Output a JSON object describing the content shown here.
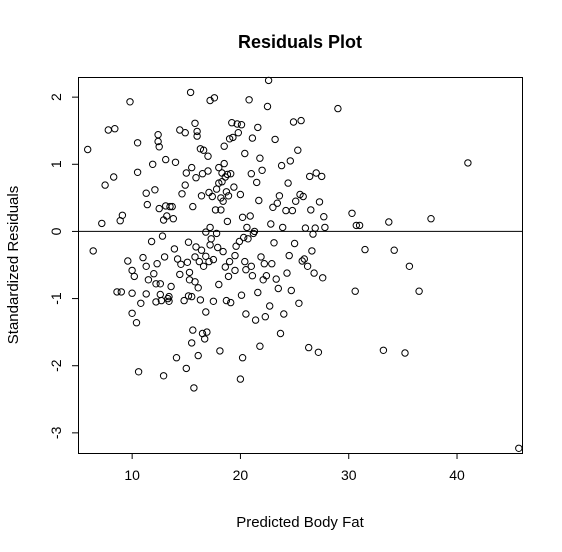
{
  "chart_data": {
    "type": "scatter",
    "title": "Residuals Plot",
    "xlabel": "Predicted Body Fat",
    "ylabel": "Standardized Residuals",
    "xlim": [
      5,
      46
    ],
    "ylim": [
      -3.3,
      2.3
    ],
    "x_ticks": [
      10,
      20,
      30,
      40
    ],
    "y_ticks": [
      -3,
      -2,
      -1,
      0,
      1,
      2
    ],
    "x_tick_labels": [
      "10",
      "20",
      "30",
      "40"
    ],
    "y_tick_labels": [
      "-3",
      "-2",
      "-1",
      "0",
      "1",
      "2"
    ],
    "reference_line": {
      "orientation": "horizontal",
      "y": 0
    },
    "grid": false,
    "legend": false,
    "points": [
      [
        5.9,
        1.22
      ],
      [
        6.4,
        -0.29
      ],
      [
        7.2,
        0.12
      ],
      [
        7.5,
        0.69
      ],
      [
        7.8,
        1.51
      ],
      [
        8.3,
        0.81
      ],
      [
        8.4,
        1.53
      ],
      [
        8.6,
        -0.9
      ],
      [
        8.9,
        0.16
      ],
      [
        9.0,
        -0.9
      ],
      [
        9.1,
        0.24
      ],
      [
        9.6,
        -0.44
      ],
      [
        9.8,
        1.93
      ],
      [
        10.0,
        -0.58
      ],
      [
        10.0,
        -0.92
      ],
      [
        10.0,
        -1.22
      ],
      [
        10.2,
        -0.67
      ],
      [
        10.4,
        -1.36
      ],
      [
        10.5,
        1.32
      ],
      [
        10.5,
        0.88
      ],
      [
        10.6,
        -2.09
      ],
      [
        10.8,
        -1.07
      ],
      [
        11.0,
        -0.39
      ],
      [
        11.3,
        -0.52
      ],
      [
        11.3,
        0.57
      ],
      [
        11.3,
        -0.93
      ],
      [
        11.4,
        0.4
      ],
      [
        11.5,
        -0.72
      ],
      [
        11.8,
        -0.15
      ],
      [
        11.9,
        1.0
      ],
      [
        12.0,
        -0.63
      ],
      [
        12.1,
        0.62
      ],
      [
        12.2,
        -0.78
      ],
      [
        12.2,
        -1.05
      ],
      [
        12.3,
        -0.48
      ],
      [
        12.4,
        1.34
      ],
      [
        12.4,
        1.44
      ],
      [
        12.5,
        0.34
      ],
      [
        12.5,
        1.26
      ],
      [
        12.6,
        -0.78
      ],
      [
        12.6,
        -0.94
      ],
      [
        12.7,
        -1.03
      ],
      [
        12.8,
        -0.07
      ],
      [
        12.9,
        0.17
      ],
      [
        12.9,
        -2.15
      ],
      [
        13.0,
        -0.38
      ],
      [
        13.1,
        1.07
      ],
      [
        13.1,
        0.38
      ],
      [
        13.2,
        0.23
      ],
      [
        13.3,
        -1.0
      ],
      [
        13.4,
        -0.97
      ],
      [
        13.4,
        -1.04
      ],
      [
        13.5,
        0.37
      ],
      [
        13.6,
        -0.82
      ],
      [
        13.7,
        0.37
      ],
      [
        13.8,
        0.19
      ],
      [
        13.9,
        -0.26
      ],
      [
        14.0,
        1.03
      ],
      [
        14.1,
        -1.88
      ],
      [
        14.2,
        -0.41
      ],
      [
        14.4,
        -0.64
      ],
      [
        14.4,
        1.51
      ],
      [
        14.5,
        -0.49
      ],
      [
        14.6,
        0.56
      ],
      [
        14.8,
        -1.03
      ],
      [
        14.9,
        1.47
      ],
      [
        14.9,
        0.69
      ],
      [
        15.0,
        0.87
      ],
      [
        15.0,
        -2.04
      ],
      [
        15.1,
        -0.46
      ],
      [
        15.2,
        -0.96
      ],
      [
        15.2,
        -0.16
      ],
      [
        15.3,
        -0.61
      ],
      [
        15.3,
        -0.72
      ],
      [
        15.4,
        2.07
      ],
      [
        15.5,
        0.95
      ],
      [
        15.5,
        -1.66
      ],
      [
        15.5,
        -0.97
      ],
      [
        15.6,
        0.37
      ],
      [
        15.6,
        -1.47
      ],
      [
        15.7,
        -2.33
      ],
      [
        15.8,
        -0.38
      ],
      [
        15.8,
        -0.75
      ],
      [
        15.8,
        1.61
      ],
      [
        15.9,
        0.8
      ],
      [
        15.9,
        -0.23
      ],
      [
        16.0,
        1.42
      ],
      [
        16.0,
        1.49
      ],
      [
        16.1,
        -0.84
      ],
      [
        16.1,
        -1.85
      ],
      [
        16.2,
        -0.45
      ],
      [
        16.3,
        1.23
      ],
      [
        16.3,
        -1.02
      ],
      [
        16.4,
        -0.28
      ],
      [
        16.4,
        0.53
      ],
      [
        16.5,
        0.86
      ],
      [
        16.5,
        -1.52
      ],
      [
        16.6,
        1.21
      ],
      [
        16.6,
        -0.52
      ],
      [
        16.7,
        -1.6
      ],
      [
        16.8,
        -0.01
      ],
      [
        16.8,
        -1.2
      ],
      [
        16.8,
        -0.37
      ],
      [
        16.9,
        -1.5
      ],
      [
        17.0,
        0.9
      ],
      [
        17.0,
        1.12
      ],
      [
        17.1,
        0.58
      ],
      [
        17.1,
        -0.45
      ],
      [
        17.2,
        0.06
      ],
      [
        17.2,
        -0.2
      ],
      [
        17.2,
        1.95
      ],
      [
        17.3,
        -0.11
      ],
      [
        17.4,
        0.52
      ],
      [
        17.5,
        -1.04
      ],
      [
        17.5,
        -0.42
      ],
      [
        17.6,
        1.99
      ],
      [
        17.7,
        0.32
      ],
      [
        17.8,
        0.63
      ],
      [
        17.8,
        -0.03
      ],
      [
        17.9,
        -0.24
      ],
      [
        18.0,
        0.95
      ],
      [
        18.0,
        0.72
      ],
      [
        18.0,
        -0.79
      ],
      [
        18.1,
        -1.78
      ],
      [
        18.2,
        0.32
      ],
      [
        18.2,
        0.5
      ],
      [
        18.3,
        0.87
      ],
      [
        18.3,
        0.74
      ],
      [
        18.4,
        -0.3
      ],
      [
        18.4,
        0.45
      ],
      [
        18.5,
        1.01
      ],
      [
        18.5,
        1.27
      ],
      [
        18.6,
        -0.53
      ],
      [
        18.6,
        0.81
      ],
      [
        18.7,
        -1.03
      ],
      [
        18.7,
        0.59
      ],
      [
        18.8,
        0.15
      ],
      [
        18.8,
        0.85
      ],
      [
        18.9,
        -0.67
      ],
      [
        18.9,
        0.53
      ],
      [
        19.0,
        1.38
      ],
      [
        19.0,
        -0.45
      ],
      [
        19.1,
        -1.06
      ],
      [
        19.1,
        0.86
      ],
      [
        19.2,
        1.62
      ],
      [
        19.3,
        1.4
      ],
      [
        19.4,
        0.66
      ],
      [
        19.5,
        -0.36
      ],
      [
        19.5,
        -0.58
      ],
      [
        19.6,
        -0.22
      ],
      [
        19.7,
        1.6
      ],
      [
        19.8,
        1.47
      ],
      [
        19.9,
        -0.15
      ],
      [
        20.0,
        -2.2
      ],
      [
        20.0,
        0.55
      ],
      [
        20.1,
        1.59
      ],
      [
        20.1,
        -0.95
      ],
      [
        20.2,
        -1.88
      ],
      [
        20.2,
        0.21
      ],
      [
        20.3,
        -0.09
      ],
      [
        20.4,
        1.16
      ],
      [
        20.4,
        -0.45
      ],
      [
        20.5,
        -1.23
      ],
      [
        20.5,
        -0.57
      ],
      [
        20.6,
        0.06
      ],
      [
        20.7,
        -0.11
      ],
      [
        20.8,
        1.96
      ],
      [
        20.9,
        0.23
      ],
      [
        21.0,
        0.86
      ],
      [
        21.0,
        -0.52
      ],
      [
        21.1,
        1.39
      ],
      [
        21.1,
        -0.66
      ],
      [
        21.2,
        -0.03
      ],
      [
        21.3,
        0.0
      ],
      [
        21.4,
        -1.32
      ],
      [
        21.5,
        0.73
      ],
      [
        21.6,
        1.55
      ],
      [
        21.6,
        -0.91
      ],
      [
        21.7,
        0.46
      ],
      [
        21.8,
        -1.71
      ],
      [
        21.8,
        1.09
      ],
      [
        21.9,
        -0.38
      ],
      [
        22.0,
        0.91
      ],
      [
        22.1,
        -0.72
      ],
      [
        22.2,
        -0.48
      ],
      [
        22.3,
        -1.27
      ],
      [
        22.4,
        -0.66
      ],
      [
        22.5,
        1.86
      ],
      [
        22.6,
        2.25
      ],
      [
        22.7,
        -1.11
      ],
      [
        22.8,
        0.11
      ],
      [
        22.9,
        -0.48
      ],
      [
        23.0,
        0.36
      ],
      [
        23.1,
        -0.17
      ],
      [
        23.2,
        1.37
      ],
      [
        23.3,
        -0.71
      ],
      [
        23.4,
        0.42
      ],
      [
        23.5,
        -0.85
      ],
      [
        23.6,
        0.53
      ],
      [
        23.7,
        -1.52
      ],
      [
        23.8,
        0.98
      ],
      [
        23.9,
        0.06
      ],
      [
        24.0,
        -1.23
      ],
      [
        24.2,
        0.31
      ],
      [
        24.3,
        -0.62
      ],
      [
        24.4,
        0.72
      ],
      [
        24.5,
        -0.36
      ],
      [
        24.6,
        1.05
      ],
      [
        24.7,
        -0.88
      ],
      [
        24.8,
        0.31
      ],
      [
        24.9,
        1.63
      ],
      [
        25.0,
        -0.18
      ],
      [
        25.1,
        0.45
      ],
      [
        25.3,
        1.21
      ],
      [
        25.4,
        -1.07
      ],
      [
        25.5,
        0.55
      ],
      [
        25.6,
        1.65
      ],
      [
        25.7,
        -0.44
      ],
      [
        25.8,
        0.52
      ],
      [
        25.9,
        -0.41
      ],
      [
        26.0,
        0.05
      ],
      [
        26.2,
        -0.52
      ],
      [
        26.3,
        -1.73
      ],
      [
        26.4,
        0.82
      ],
      [
        26.5,
        0.32
      ],
      [
        26.6,
        -0.29
      ],
      [
        26.7,
        -0.04
      ],
      [
        26.8,
        -0.62
      ],
      [
        26.9,
        0.05
      ],
      [
        27.0,
        0.87
      ],
      [
        27.2,
        -1.8
      ],
      [
        27.3,
        0.44
      ],
      [
        27.5,
        0.82
      ],
      [
        27.6,
        -0.69
      ],
      [
        27.7,
        0.22
      ],
      [
        27.8,
        0.06
      ],
      [
        29.0,
        1.83
      ],
      [
        30.3,
        0.27
      ],
      [
        30.6,
        -0.89
      ],
      [
        30.7,
        0.09
      ],
      [
        31.0,
        0.09
      ],
      [
        31.5,
        -0.27
      ],
      [
        33.2,
        -1.77
      ],
      [
        33.7,
        0.14
      ],
      [
        34.2,
        -0.28
      ],
      [
        35.2,
        -1.81
      ],
      [
        35.6,
        -0.52
      ],
      [
        36.5,
        -0.89
      ],
      [
        37.6,
        0.19
      ],
      [
        41.0,
        1.02
      ],
      [
        45.7,
        -3.23
      ]
    ]
  }
}
